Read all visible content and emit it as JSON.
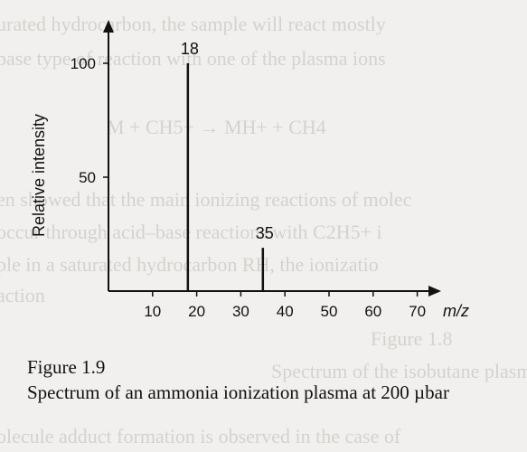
{
  "chart_data": {
    "type": "bar",
    "xlabel": "m/z",
    "ylabel": "Relative intensity",
    "xlim": [
      0,
      82
    ],
    "ylim": [
      0,
      115
    ],
    "x_ticks": [
      10,
      20,
      30,
      40,
      50,
      60,
      70
    ],
    "y_ticks": [
      50,
      100
    ],
    "peaks": [
      {
        "mz": 18,
        "intensity": 100,
        "label": "18"
      },
      {
        "mz": 35,
        "intensity": 19,
        "label": "35"
      }
    ],
    "colors": {
      "axis": "#111111",
      "bar": "#111111"
    }
  },
  "caption": {
    "figure_label": "Figure 1.9",
    "text": "Spectrum of an ammonia ionization plasma at 200 µbar"
  },
  "background_text": [
    "urated hydrocarbon, the sample will react mostly",
    "base type of reaction with one of the plasma ions",
    "M + CH5+ → MH+ + CH4",
    "en showed that the main ionizing reactions of molec",
    "occur through acid–base reactions with C2H5+ i",
    "ple in a saturated hydrocarbon RH, the ionizatio",
    "action",
    "Figure 1.8",
    "Spectrum of the isobutane plasma",
    "olecule adduct formation is observed in the case of"
  ]
}
